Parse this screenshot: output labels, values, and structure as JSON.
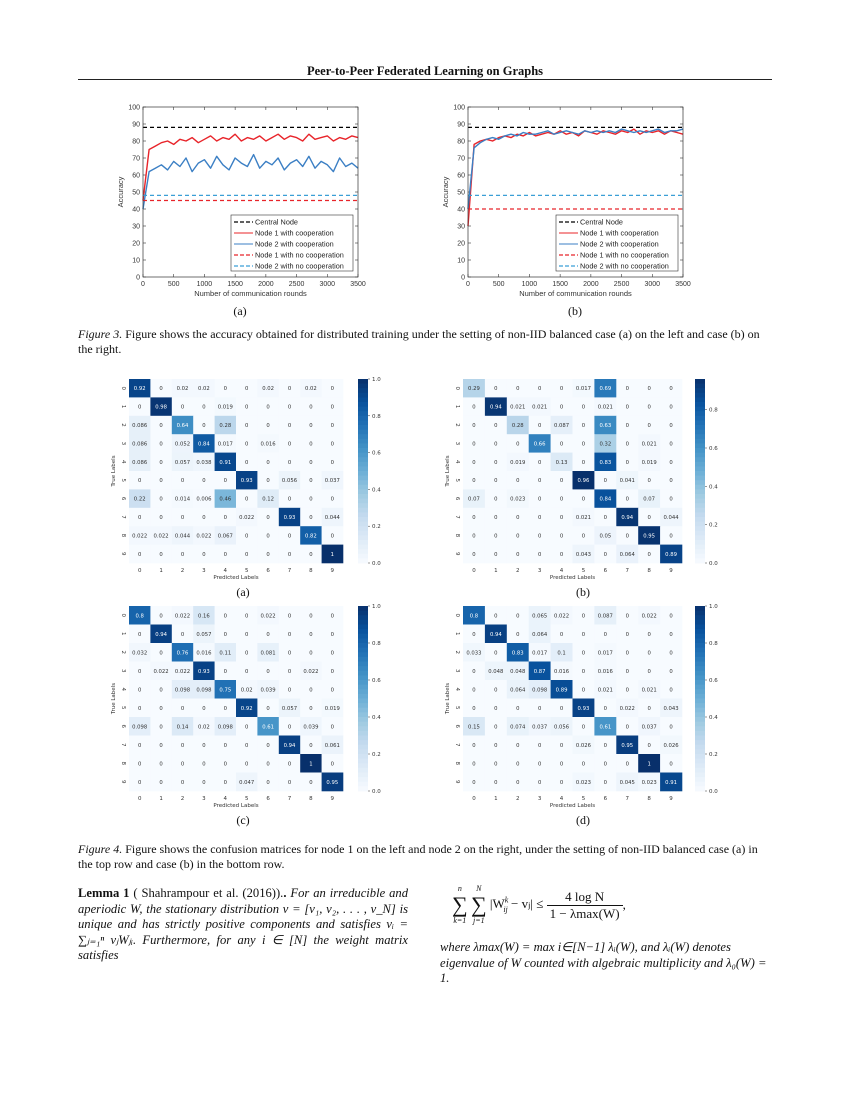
{
  "header": {
    "running_title": "Peer-to-Peer Federated Learning on Graphs"
  },
  "figure3": {
    "panel_labels": [
      "(a)",
      "(b)"
    ],
    "caption_label": "Figure 3.",
    "caption_text": " Figure shows the accuracy obtained for distributed training under the setting of non-IID balanced case (a) on the left and case (b) on the right."
  },
  "figure4": {
    "panel_labels": [
      "(a)",
      "(b)",
      "(c)",
      "(d)"
    ],
    "caption_label": "Figure 4.",
    "caption_text": " Figure shows the confusion matrices for node 1 on the left and node 2 on the right, under the setting of non-IID balanced case (a) in the top row and case (b) in the bottom row."
  },
  "lemma": {
    "title": "Lemma 1",
    "citation": " ( Shahrampour et al. (2016)).",
    "body": " For an irreducible and aperiodic W, the stationary distribution v = [v₁, v₂, . . . , v_N] is unique and has strictly positive components and satisfies vᵢ = ∑ⱼ₌₁ⁿ vⱼWⱼᵢ. Furthermore, for any i ∈ [N] the weight matrix satisfies",
    "eq_sum1_upper": "n",
    "eq_sum1_lower": "k=1",
    "eq_sum2_upper": "N",
    "eq_sum2_lower": "j=1",
    "eq_lhs": "|W",
    "eq_lhs_sup": "k",
    "eq_lhs_sub": "ij",
    "eq_lhs_rest": " − vⱼ| ≤",
    "eq_num": "4 log N",
    "eq_den": "1 − λmax(W)",
    "eq_end": ",",
    "where": "where λmax(W) = max i∈[N−1] λᵢ(W), and λᵢ(W) denotes eigenvalue of W counted with algebraic multiplicity and λ₀(W) = 1."
  },
  "chart_data": [
    {
      "type": "line",
      "panel": "(a)",
      "xlabel": "Number of communication rounds",
      "ylabel": "Accuracy",
      "xlim": [
        0,
        3500
      ],
      "ylim": [
        0,
        100
      ],
      "xticks": [
        0,
        500,
        1000,
        1500,
        2000,
        2500,
        3000,
        3500
      ],
      "yticks": [
        0,
        10,
        20,
        30,
        40,
        50,
        60,
        70,
        80,
        90,
        100
      ],
      "legend_position": "bottom-right",
      "x": [
        0,
        100,
        200,
        300,
        400,
        500,
        600,
        700,
        800,
        900,
        1000,
        1100,
        1200,
        1300,
        1400,
        1500,
        1600,
        1700,
        1800,
        1900,
        2000,
        2100,
        2200,
        2300,
        2400,
        2500,
        2600,
        2700,
        2800,
        2900,
        3000,
        3100,
        3200,
        3300,
        3400,
        3500
      ],
      "series": [
        {
          "name": "Central Node",
          "style": "dashed",
          "color": "#000000",
          "constant": 88
        },
        {
          "name": "Node 1 with cooperation",
          "style": "solid",
          "color": "#e8242a",
          "values": [
            45,
            75,
            77,
            79,
            80,
            78,
            81,
            80,
            82,
            79,
            81,
            83,
            80,
            82,
            81,
            84,
            80,
            82,
            81,
            83,
            80,
            82,
            84,
            81,
            83,
            82,
            80,
            84,
            81,
            82,
            83,
            80,
            82,
            81,
            83,
            82
          ]
        },
        {
          "name": "Node 2 with cooperation",
          "style": "solid",
          "color": "#3b7fc4",
          "values": [
            40,
            62,
            64,
            66,
            63,
            68,
            65,
            70,
            62,
            67,
            69,
            64,
            71,
            66,
            63,
            70,
            67,
            65,
            72,
            64,
            68,
            66,
            70,
            63,
            67,
            69,
            65,
            71,
            64,
            68,
            66,
            62,
            70,
            65,
            67,
            64
          ]
        },
        {
          "name": "Node 1 with no cooperation",
          "style": "dashed",
          "color": "#e8242a",
          "constant": 45
        },
        {
          "name": "Node 2 with no cooperation",
          "style": "dashed",
          "color": "#3b9fd6",
          "constant": 48
        }
      ]
    },
    {
      "type": "line",
      "panel": "(b)",
      "xlabel": "Number of communication rounds",
      "ylabel": "Accuracy",
      "xlim": [
        0,
        3500
      ],
      "ylim": [
        0,
        100
      ],
      "xticks": [
        0,
        500,
        1000,
        1500,
        2000,
        2500,
        3000,
        3500
      ],
      "yticks": [
        0,
        10,
        20,
        30,
        40,
        50,
        60,
        70,
        80,
        90,
        100
      ],
      "legend_position": "bottom-right",
      "x": [
        0,
        100,
        200,
        300,
        400,
        500,
        600,
        700,
        800,
        900,
        1000,
        1100,
        1200,
        1300,
        1400,
        1500,
        1600,
        1700,
        1800,
        1900,
        2000,
        2100,
        2200,
        2300,
        2400,
        2500,
        2600,
        2700,
        2800,
        2900,
        3000,
        3100,
        3200,
        3300,
        3400,
        3500
      ],
      "series": [
        {
          "name": "Central Node",
          "style": "dashed",
          "color": "#000000",
          "constant": 88
        },
        {
          "name": "Node 1 with cooperation",
          "style": "solid",
          "color": "#e8242a",
          "values": [
            30,
            78,
            80,
            81,
            80,
            82,
            83,
            82,
            84,
            83,
            85,
            83,
            84,
            85,
            84,
            86,
            84,
            85,
            83,
            86,
            85,
            84,
            86,
            85,
            84,
            86,
            85,
            87,
            84,
            86,
            85,
            86,
            84,
            86,
            85,
            84
          ]
        },
        {
          "name": "Node 2 with cooperation",
          "style": "solid",
          "color": "#3b7fc4",
          "values": [
            40,
            76,
            79,
            81,
            82,
            81,
            83,
            84,
            83,
            85,
            84,
            84,
            85,
            86,
            84,
            85,
            86,
            85,
            84,
            86,
            85,
            86,
            85,
            86,
            85,
            87,
            86,
            85,
            86,
            85,
            86,
            87,
            85,
            86,
            86,
            87
          ]
        },
        {
          "name": "Node 1 with no cooperation",
          "style": "dashed",
          "color": "#e8242a",
          "constant": 40
        },
        {
          "name": "Node 2 with no cooperation",
          "style": "dashed",
          "color": "#3b9fd6",
          "constant": 48
        }
      ]
    },
    {
      "type": "heatmap",
      "panel": "(a)",
      "colormap": "Blues",
      "xlabel": "Predicted Labels",
      "ylabel": "True Labels",
      "labels": [
        "0",
        "1",
        "2",
        "3",
        "4",
        "5",
        "6",
        "7",
        "8",
        "9"
      ],
      "colorbar_range": [
        0,
        1.0
      ],
      "colorbar_ticks": [
        "0.0",
        "0.2",
        "0.4",
        "0.6",
        "0.8",
        "1.0"
      ],
      "values": [
        [
          "0.92",
          "0",
          "0.02",
          "0.02",
          "0",
          "0",
          "0.02",
          "0",
          "0.02",
          "0"
        ],
        [
          "0",
          "0.98",
          "0",
          "0",
          "0.019",
          "0",
          "0",
          "0",
          "0",
          "0"
        ],
        [
          "0.086",
          "0",
          "0.64",
          "0",
          "0.28",
          "0",
          "0",
          "0",
          "0",
          "0"
        ],
        [
          "0.086",
          "0",
          "0.052",
          "0.84",
          "0.017",
          "0",
          "0.016",
          "0",
          "0",
          "0"
        ],
        [
          "0.086",
          "0",
          "0.057",
          "0.038",
          "0.91",
          "0",
          "0",
          "0",
          "0",
          "0"
        ],
        [
          "0",
          "0",
          "0",
          "0",
          "0",
          "0.93",
          "0",
          "0.056",
          "0",
          "0.037"
        ],
        [
          "0.22",
          "0",
          "0.014",
          "0.006",
          "0.46",
          "0",
          "0.12",
          "0",
          "0",
          "0"
        ],
        [
          "0",
          "0",
          "0",
          "0",
          "0",
          "0.022",
          "0",
          "0.93",
          "0",
          "0.044"
        ],
        [
          "0.022",
          "0.022",
          "0.044",
          "0.022",
          "0.067",
          "0",
          "0",
          "0",
          "0.82",
          "0"
        ],
        [
          "0",
          "0",
          "0",
          "0",
          "0",
          "0",
          "0",
          "0",
          "0",
          "1"
        ]
      ]
    },
    {
      "type": "heatmap",
      "panel": "(b)",
      "colormap": "Blues",
      "xlabel": "Predicted Labels",
      "ylabel": "True Labels",
      "labels": [
        "0",
        "1",
        "2",
        "3",
        "4",
        "5",
        "6",
        "7",
        "8",
        "9"
      ],
      "colorbar_range": [
        0,
        0.96
      ],
      "colorbar_ticks": [
        "0.0",
        "0.2",
        "0.4",
        "0.6",
        "0.8"
      ],
      "values": [
        [
          "0.29",
          "0",
          "0",
          "0",
          "0",
          "0.017",
          "0.69",
          "0",
          "0",
          "0"
        ],
        [
          "0",
          "0.94",
          "0.021",
          "0.021",
          "0",
          "0",
          "0.021",
          "0",
          "0",
          "0"
        ],
        [
          "0",
          "0",
          "0.28",
          "0",
          "0.087",
          "0",
          "0.63",
          "0",
          "0",
          "0"
        ],
        [
          "0",
          "0",
          "0",
          "0.66",
          "0",
          "0",
          "0.32",
          "0",
          "0.021",
          "0"
        ],
        [
          "0",
          "0",
          "0.019",
          "0",
          "0.13",
          "0",
          "0.83",
          "0",
          "0.019",
          "0"
        ],
        [
          "0",
          "0",
          "0",
          "0",
          "0",
          "0.96",
          "0",
          "0.041",
          "0",
          "0"
        ],
        [
          "0.07",
          "0",
          "0.023",
          "0",
          "0",
          "0",
          "0.84",
          "0",
          "0.07",
          "0"
        ],
        [
          "0",
          "0",
          "0",
          "0",
          "0",
          "0.021",
          "0",
          "0.94",
          "0",
          "0.044"
        ],
        [
          "0",
          "0",
          "0",
          "0",
          "0",
          "0",
          "0.05",
          "0",
          "0.95",
          "0"
        ],
        [
          "0",
          "0",
          "0",
          "0",
          "0",
          "0.043",
          "0",
          "0.064",
          "0",
          "0.89"
        ]
      ]
    },
    {
      "type": "heatmap",
      "panel": "(c)",
      "colormap": "Blues",
      "xlabel": "Predicted Labels",
      "ylabel": "True Labels",
      "labels": [
        "0",
        "1",
        "2",
        "3",
        "4",
        "5",
        "6",
        "7",
        "8",
        "9"
      ],
      "colorbar_range": [
        0,
        1.0
      ],
      "colorbar_ticks": [
        "0.0",
        "0.2",
        "0.4",
        "0.6",
        "0.8",
        "1.0"
      ],
      "values": [
        [
          "0.8",
          "0",
          "0.022",
          "0.16",
          "0",
          "0",
          "0.022",
          "0",
          "0",
          "0"
        ],
        [
          "0",
          "0.94",
          "0",
          "0.057",
          "0",
          "0",
          "0",
          "0",
          "0",
          "0"
        ],
        [
          "0.032",
          "0",
          "0.76",
          "0.016",
          "0.11",
          "0",
          "0.081",
          "0",
          "0",
          "0"
        ],
        [
          "0",
          "0.022",
          "0.022",
          "0.93",
          "0",
          "0",
          "0",
          "0",
          "0.022",
          "0"
        ],
        [
          "0",
          "0",
          "0.098",
          "0.098",
          "0.75",
          "0.02",
          "0.039",
          "0",
          "0",
          "0"
        ],
        [
          "0",
          "0",
          "0",
          "0",
          "0",
          "0.92",
          "0",
          "0.057",
          "0",
          "0.019"
        ],
        [
          "0.098",
          "0",
          "0.14",
          "0.02",
          "0.098",
          "0",
          "0.61",
          "0",
          "0.039",
          "0"
        ],
        [
          "0",
          "0",
          "0",
          "0",
          "0",
          "0",
          "0",
          "0.94",
          "0",
          "0.061"
        ],
        [
          "0",
          "0",
          "0",
          "0",
          "0",
          "0",
          "0",
          "0",
          "1",
          "0"
        ],
        [
          "0",
          "0",
          "0",
          "0",
          "0",
          "0.047",
          "0",
          "0",
          "0",
          "0.95"
        ]
      ]
    },
    {
      "type": "heatmap",
      "panel": "(d)",
      "colormap": "Blues",
      "xlabel": "Predicted Labels",
      "ylabel": "True Labels",
      "labels": [
        "0",
        "1",
        "2",
        "3",
        "4",
        "5",
        "6",
        "7",
        "8",
        "9"
      ],
      "colorbar_range": [
        0,
        1.0
      ],
      "colorbar_ticks": [
        "0.0",
        "0.2",
        "0.4",
        "0.6",
        "0.8",
        "1.0"
      ],
      "values": [
        [
          "0.8",
          "0",
          "0",
          "0.065",
          "0.022",
          "0",
          "0.087",
          "0",
          "0.022",
          "0"
        ],
        [
          "0",
          "0.94",
          "0",
          "0.064",
          "0",
          "0",
          "0",
          "0",
          "0",
          "0"
        ],
        [
          "0.033",
          "0",
          "0.83",
          "0.017",
          "0.1",
          "0",
          "0.017",
          "0",
          "0",
          "0"
        ],
        [
          "0",
          "0.048",
          "0.048",
          "0.87",
          "0.016",
          "0",
          "0.016",
          "0",
          "0",
          "0"
        ],
        [
          "0",
          "0",
          "0.064",
          "0.098",
          "0.89",
          "0",
          "0.021",
          "0",
          "0.021",
          "0"
        ],
        [
          "0",
          "0",
          "0",
          "0",
          "0",
          "0.93",
          "0",
          "0.022",
          "0",
          "0.043"
        ],
        [
          "0.15",
          "0",
          "0.074",
          "0.037",
          "0.056",
          "0",
          "0.61",
          "0",
          "0.037",
          "0"
        ],
        [
          "0",
          "0",
          "0",
          "0",
          "0",
          "0.026",
          "0",
          "0.95",
          "0",
          "0.026"
        ],
        [
          "0",
          "0",
          "0",
          "0",
          "0",
          "0",
          "0",
          "0",
          "1",
          "0"
        ],
        [
          "0",
          "0",
          "0",
          "0",
          "0",
          "0.023",
          "0",
          "0.045",
          "0.023",
          "0.91"
        ]
      ]
    }
  ]
}
